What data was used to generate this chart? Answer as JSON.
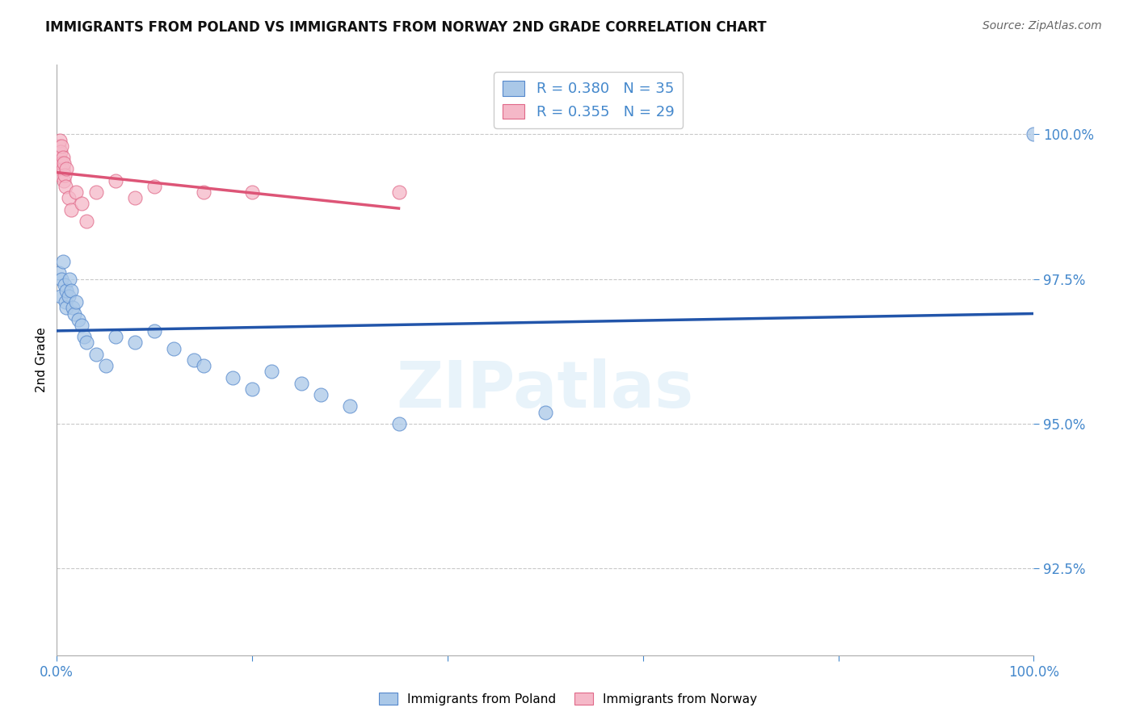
{
  "title": "IMMIGRANTS FROM POLAND VS IMMIGRANTS FROM NORWAY 2ND GRADE CORRELATION CHART",
  "source": "Source: ZipAtlas.com",
  "ylabel": "2nd Grade",
  "watermark": "ZIPatlas",
  "legend_blue_r": "R = 0.380",
  "legend_blue_n": "N = 35",
  "legend_pink_r": "R = 0.355",
  "legend_pink_n": "N = 29",
  "legend_blue_label": "Immigrants from Poland",
  "legend_pink_label": "Immigrants from Norway",
  "xlim": [
    0.0,
    100.0
  ],
  "ylim": [
    91.0,
    101.2
  ],
  "yticks": [
    92.5,
    95.0,
    97.5,
    100.0
  ],
  "ytick_labels": [
    "92.5%",
    "95.0%",
    "97.5%",
    "100.0%"
  ],
  "xtick_labels": [
    "0.0%",
    "",
    "",
    "",
    "",
    "100.0%"
  ],
  "blue_scatter_color": "#aac8e8",
  "blue_edge_color": "#5588cc",
  "pink_scatter_color": "#f5b8c8",
  "pink_edge_color": "#e06888",
  "blue_line_color": "#2255aa",
  "pink_line_color": "#dd5577",
  "axis_label_color": "#4488cc",
  "title_color": "#111111",
  "grid_color": "#bbbbbb",
  "blue_scatter_x": [
    0.2,
    0.4,
    0.5,
    0.6,
    0.8,
    0.9,
    1.0,
    1.0,
    1.2,
    1.3,
    1.5,
    1.6,
    1.8,
    2.0,
    2.2,
    2.5,
    2.8,
    3.0,
    4.0,
    5.0,
    6.0,
    8.0,
    10.0,
    12.0,
    14.0,
    15.0,
    18.0,
    20.0,
    22.0,
    25.0,
    27.0,
    30.0,
    35.0,
    50.0,
    100.0
  ],
  "blue_scatter_y": [
    97.6,
    97.2,
    97.5,
    97.8,
    97.4,
    97.1,
    97.3,
    97.0,
    97.2,
    97.5,
    97.3,
    97.0,
    96.9,
    97.1,
    96.8,
    96.7,
    96.5,
    96.4,
    96.2,
    96.0,
    96.5,
    96.4,
    96.6,
    96.3,
    96.1,
    96.0,
    95.8,
    95.6,
    95.9,
    95.7,
    95.5,
    95.3,
    95.0,
    95.2,
    100.0
  ],
  "pink_scatter_x": [
    0.1,
    0.2,
    0.2,
    0.3,
    0.3,
    0.3,
    0.4,
    0.4,
    0.5,
    0.5,
    0.6,
    0.6,
    0.7,
    0.7,
    0.8,
    0.9,
    1.0,
    1.2,
    1.5,
    2.0,
    2.5,
    3.0,
    4.0,
    6.0,
    8.0,
    10.0,
    15.0,
    20.0,
    35.0
  ],
  "pink_scatter_y": [
    99.7,
    99.5,
    99.8,
    99.4,
    99.6,
    99.9,
    99.3,
    99.7,
    99.5,
    99.8,
    99.4,
    99.6,
    99.2,
    99.5,
    99.3,
    99.1,
    99.4,
    98.9,
    98.7,
    99.0,
    98.8,
    98.5,
    99.0,
    99.2,
    98.9,
    99.1,
    99.0,
    99.0,
    99.0
  ]
}
